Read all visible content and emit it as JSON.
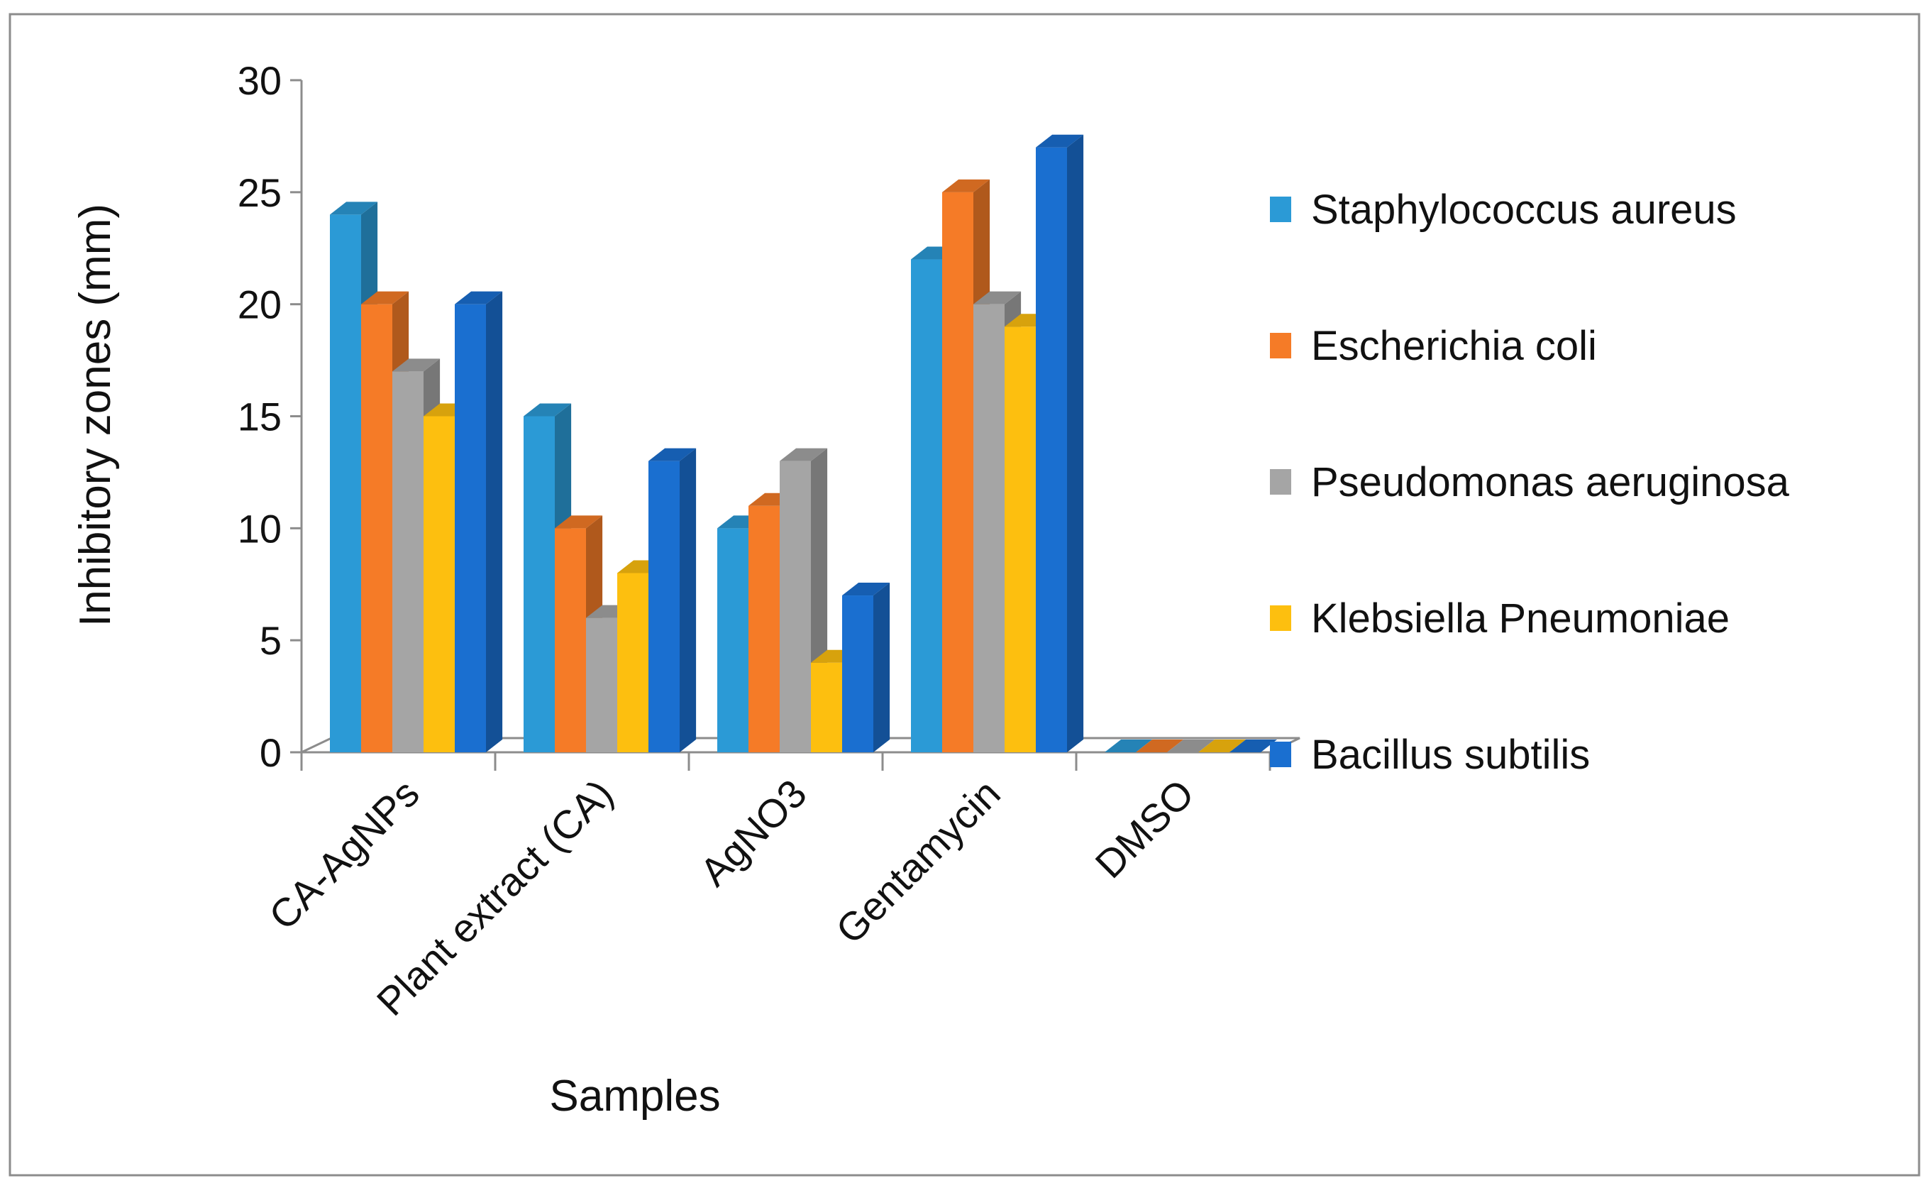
{
  "chart_data": {
    "type": "bar",
    "style": "3d-clustered-column",
    "title": "",
    "xlabel": "Samples",
    "ylabel": "Inhibitory zones (mm)",
    "ylim": [
      0,
      30
    ],
    "yticks": [
      0,
      5,
      10,
      15,
      20,
      25,
      30
    ],
    "ytick_labels": [
      "0",
      "5",
      "10",
      "15",
      "20",
      "25",
      "30"
    ],
    "grid": false,
    "legend_position": "right",
    "categories": [
      "CA-AgNPs",
      "Plant extract (CA)",
      "AgNO3",
      "Gentamycin",
      "DMSO"
    ],
    "series": [
      {
        "name": "Staphylococcus aureus",
        "color": "#2b9ad6",
        "values": [
          24,
          15,
          10,
          22,
          0
        ]
      },
      {
        "name": "Escherichia coli",
        "color": "#f57b27",
        "values": [
          20,
          10,
          11,
          25,
          0
        ]
      },
      {
        "name": "Pseudomonas aeruginosa",
        "color": "#a5a5a5",
        "values": [
          17,
          6,
          13,
          20,
          0
        ]
      },
      {
        "name": "Klebsiella Pneumoniae",
        "color": "#fdbf0f",
        "values": [
          15,
          8,
          4,
          19,
          0
        ]
      },
      {
        "name": "Bacillus subtilis",
        "color": "#1a6fd0",
        "values": [
          20,
          13,
          7,
          27,
          0
        ]
      }
    ]
  }
}
